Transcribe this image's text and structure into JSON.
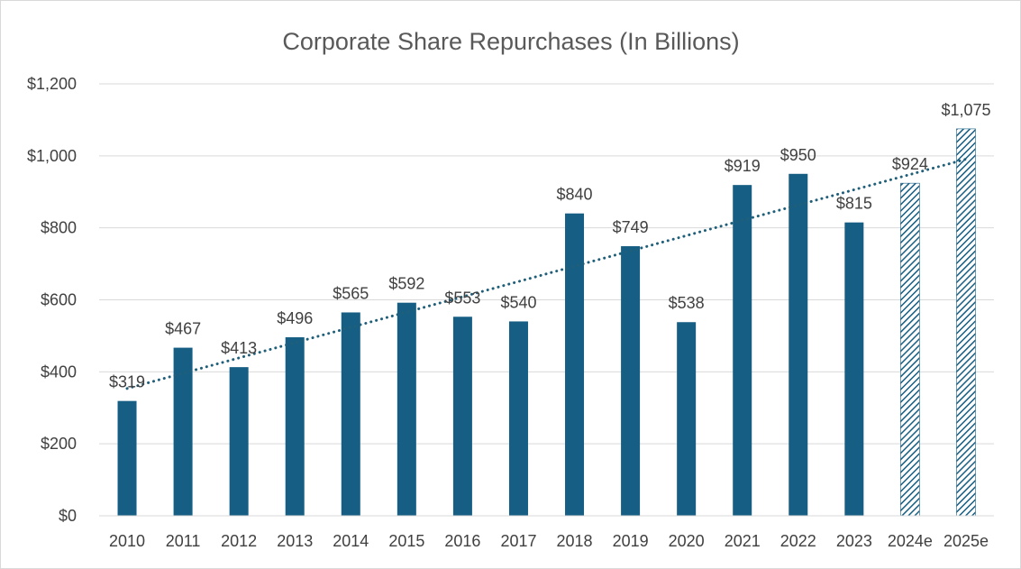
{
  "chart_data": {
    "type": "bar",
    "title": "Corporate Share Repurchases (In Billions)",
    "categories": [
      "2010",
      "2011",
      "2012",
      "2013",
      "2014",
      "2015",
      "2016",
      "2017",
      "2018",
      "2019",
      "2020",
      "2021",
      "2022",
      "2023",
      "2024e",
      "2025e"
    ],
    "values": [
      319,
      467,
      413,
      496,
      565,
      592,
      553,
      540,
      840,
      749,
      538,
      919,
      950,
      815,
      924,
      1075
    ],
    "data_labels": [
      "$319",
      "$467",
      "$413",
      "$496",
      "$565",
      "$592",
      "$553",
      "$540",
      "$840",
      "$749",
      "$538",
      "$919",
      "$950",
      "$815",
      "$924",
      "$1,075"
    ],
    "estimated": [
      false,
      false,
      false,
      false,
      false,
      false,
      false,
      false,
      false,
      false,
      false,
      false,
      false,
      false,
      true,
      true
    ],
    "y_ticks": [
      0,
      200,
      400,
      600,
      800,
      1000,
      1200
    ],
    "y_tick_labels": [
      "$0",
      "$200",
      "$400",
      "$600",
      "$800",
      "$1,000",
      "$1,200"
    ],
    "ylim": [
      0,
      1200
    ],
    "xlabel": "",
    "ylabel": "",
    "grid": true,
    "legend": "none",
    "trendline": {
      "type": "linear",
      "style": "dotted"
    },
    "colors": {
      "bar": "#165e83",
      "trend": "#1f5f7a",
      "grid": "#d9d9d9",
      "text": "#404040",
      "title": "#595959"
    }
  }
}
